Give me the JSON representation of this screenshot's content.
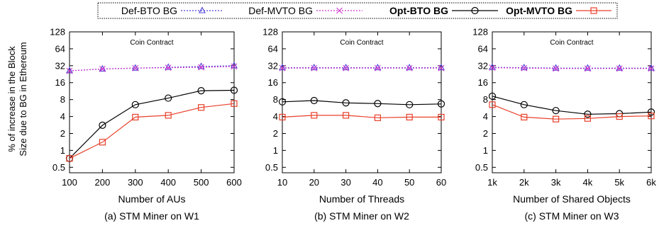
{
  "legend": {
    "entries": [
      {
        "label": "Def-BTO BG",
        "color": "#4b3fd6",
        "marker": "triangle",
        "dash": true,
        "bold": false
      },
      {
        "label": "Def-MVTO BG",
        "color": "#cc33cc",
        "marker": "x",
        "dash": true,
        "bold": false
      },
      {
        "label": "Opt-BTO BG",
        "color": "#000000",
        "marker": "circle",
        "dash": false,
        "bold": true
      },
      {
        "label": "Opt-MVTO BG",
        "color": "#e8402a",
        "marker": "square",
        "dash": false,
        "bold": true
      }
    ]
  },
  "ylabel_lines": [
    "% of increase in the Block",
    "Size due to BG in Ethereum"
  ],
  "chart_data": [
    {
      "type": "line",
      "annotation": "Coin Contract",
      "xlabel": "Number of AUs",
      "caption": "(a) STM Miner on W1",
      "categories": [
        "100",
        "200",
        "300",
        "400",
        "500",
        "600"
      ],
      "yscale": "log2",
      "ylim": [
        0.4,
        128
      ],
      "yticks": [
        "0.5",
        "1",
        "2",
        "4",
        "8",
        "16",
        "32",
        "64",
        "128"
      ],
      "grid": false,
      "series": [
        {
          "name": "Def-BTO BG",
          "values": [
            26,
            28,
            29,
            30,
            31,
            32
          ]
        },
        {
          "name": "Def-MVTO BG",
          "values": [
            26,
            28,
            29,
            29.5,
            30,
            31
          ]
        },
        {
          "name": "Opt-BTO BG",
          "values": [
            0.72,
            2.8,
            6.5,
            8.5,
            11.5,
            11.7
          ]
        },
        {
          "name": "Opt-MVTO BG",
          "values": [
            0.72,
            1.4,
            3.9,
            4.2,
            5.8,
            6.8
          ]
        }
      ]
    },
    {
      "type": "line",
      "annotation": "Coin Contract",
      "xlabel": "Number of Threads",
      "caption": "(b) STM Miner on W2",
      "categories": [
        "10",
        "20",
        "30",
        "40",
        "50",
        "60"
      ],
      "yscale": "log2",
      "ylim": [
        0.4,
        128
      ],
      "yticks": [
        "0.5",
        "1",
        "2",
        "4",
        "8",
        "16",
        "32",
        "64",
        "128"
      ],
      "grid": false,
      "series": [
        {
          "name": "Def-BTO BG",
          "values": [
            29.5,
            29.5,
            29.5,
            29.5,
            29.5,
            29.5
          ]
        },
        {
          "name": "Def-MVTO BG",
          "values": [
            29,
            29,
            29,
            29,
            29,
            29
          ]
        },
        {
          "name": "Opt-BTO BG",
          "values": [
            7.3,
            7.7,
            7.0,
            6.8,
            6.5,
            6.7
          ]
        },
        {
          "name": "Opt-MVTO BG",
          "values": [
            3.9,
            4.2,
            4.2,
            3.8,
            3.9,
            3.9
          ]
        }
      ]
    },
    {
      "type": "line",
      "annotation": "Coin Contract",
      "xlabel": "Number of Shared Objects",
      "caption": "(c) STM Miner on W3",
      "categories": [
        "1k",
        "2k",
        "3k",
        "4k",
        "5k",
        "6k"
      ],
      "yscale": "log2",
      "ylim": [
        0.4,
        128
      ],
      "yticks": [
        "0.5",
        "1",
        "2",
        "4",
        "8",
        "16",
        "32",
        "64",
        "128"
      ],
      "grid": false,
      "series": [
        {
          "name": "Def-BTO BG",
          "values": [
            30,
            29.5,
            29,
            29,
            29,
            29
          ]
        },
        {
          "name": "Def-MVTO BG",
          "values": [
            29.5,
            29,
            28.5,
            28.5,
            28.5,
            28.5
          ]
        },
        {
          "name": "Opt-BTO BG",
          "values": [
            9.2,
            6.5,
            5.1,
            4.4,
            4.5,
            4.8
          ]
        },
        {
          "name": "Opt-MVTO BG",
          "values": [
            6.5,
            3.9,
            3.6,
            3.7,
            4.0,
            4.1
          ]
        }
      ]
    }
  ]
}
